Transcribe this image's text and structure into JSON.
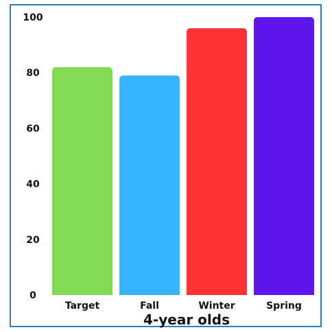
{
  "chart_data": {
    "type": "bar",
    "categories": [
      "Target",
      "Fall",
      "Winter",
      "Spring"
    ],
    "values": [
      82,
      79,
      96,
      100
    ],
    "colors": [
      "#84d957",
      "#36b4ff",
      "#ff3333",
      "#5d17eb"
    ],
    "title": "",
    "xlabel": "4-year olds",
    "ylabel": "",
    "ylim": [
      0,
      100
    ],
    "yticks": [
      0,
      20,
      40,
      60,
      80,
      100
    ],
    "grid": false,
    "legend": "none"
  }
}
